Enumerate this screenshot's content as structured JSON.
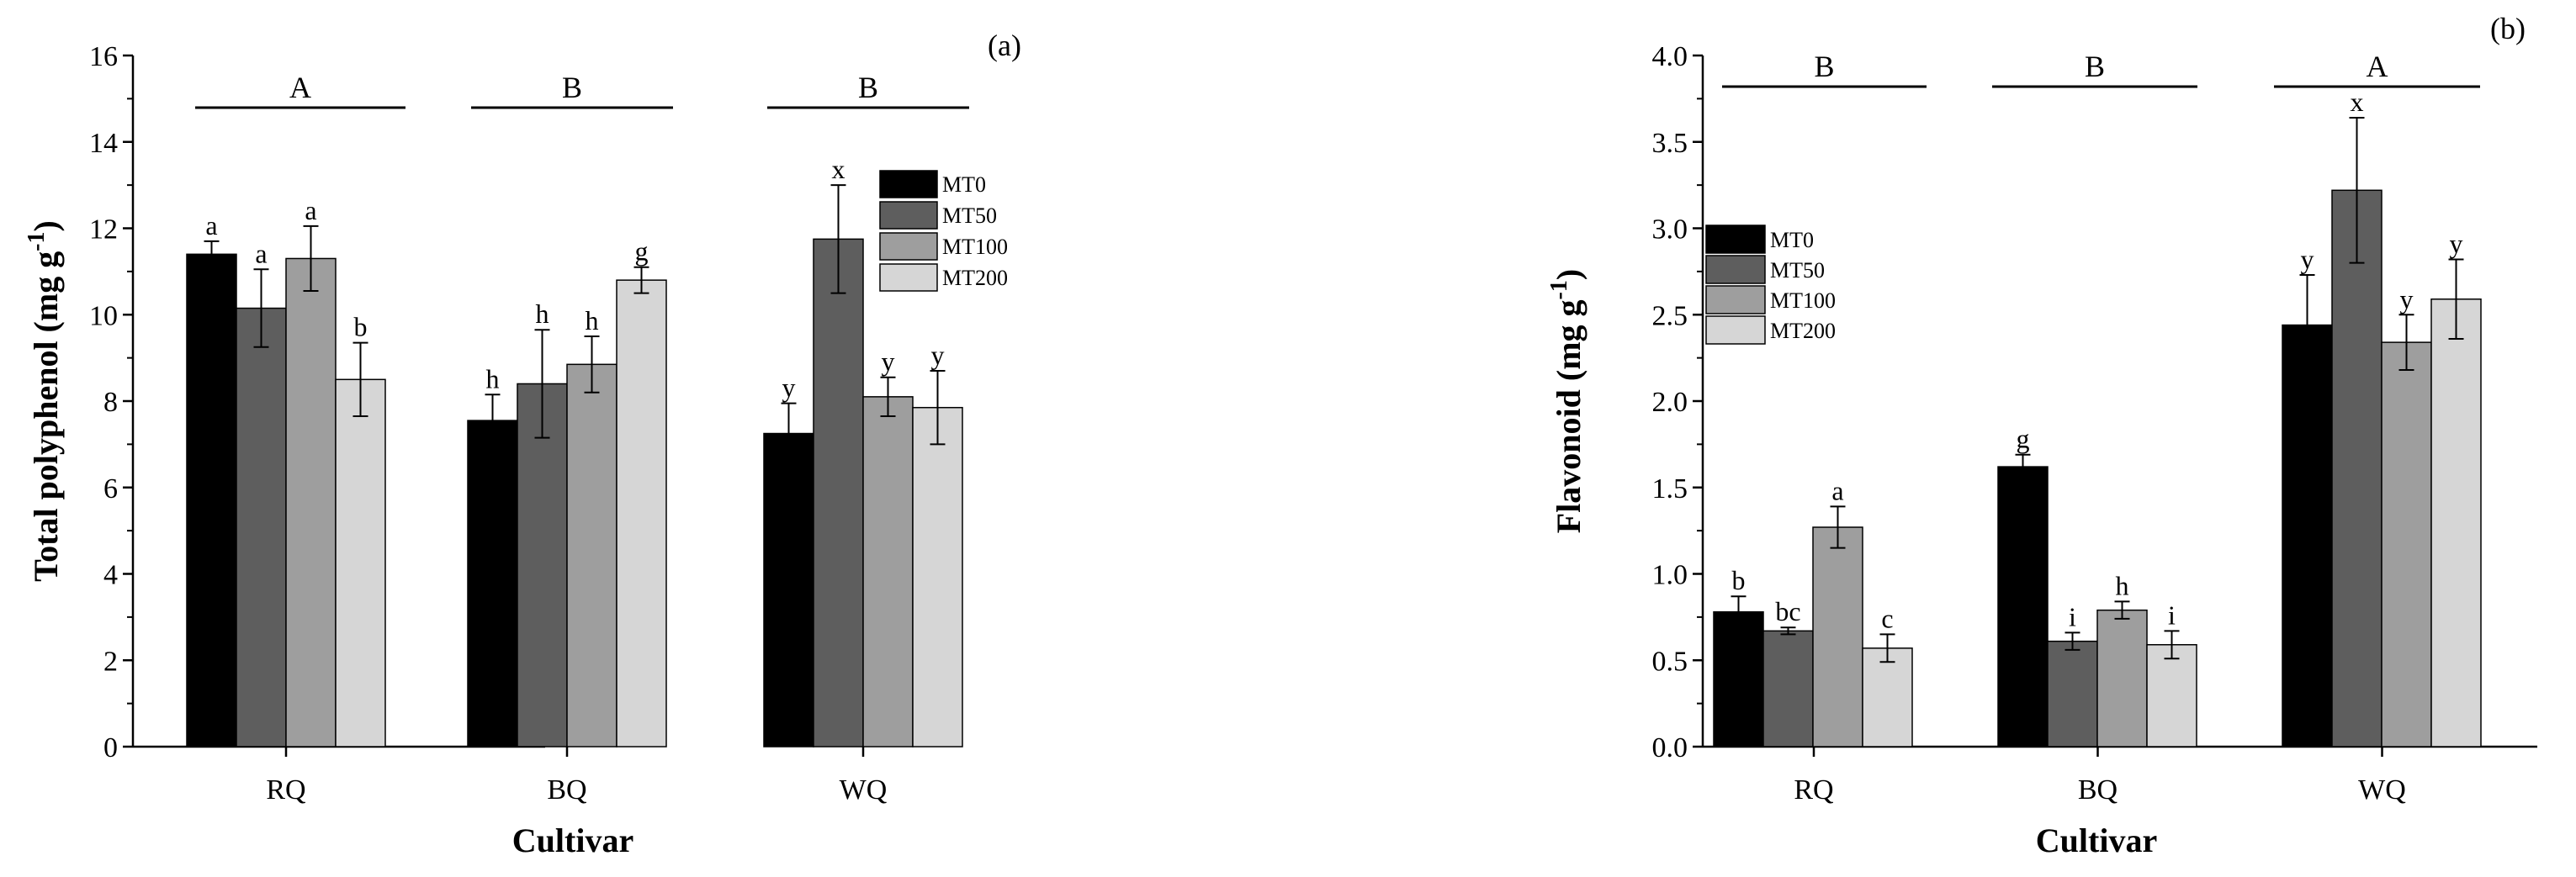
{
  "chart_data": [
    {
      "type": "bar",
      "panel_label": "(a)",
      "xlabel": "Cultivar",
      "ylabel": "Total polyphenol (mg g",
      "ylabel_sup": "-1",
      "ylabel_close": ")",
      "ylim": [
        0,
        16
      ],
      "yticks": [
        "0",
        "2",
        "4",
        "6",
        "8",
        "10",
        "12",
        "14",
        "16"
      ],
      "categories": [
        "RQ",
        "BQ",
        "WQ"
      ],
      "series": [
        {
          "name": "MT0",
          "values": [
            11.4,
            7.55,
            7.25
          ],
          "errors": [
            0.3,
            0.6,
            0.7
          ],
          "letters": [
            "a",
            "h",
            "y"
          ]
        },
        {
          "name": "MT50",
          "values": [
            10.15,
            8.4,
            11.75
          ],
          "errors": [
            0.9,
            1.25,
            1.25
          ],
          "letters": [
            "a",
            "h",
            "x"
          ]
        },
        {
          "name": "MT100",
          "values": [
            11.3,
            8.85,
            8.1
          ],
          "errors": [
            0.75,
            0.65,
            0.45
          ],
          "letters": [
            "a",
            "h",
            "y"
          ]
        },
        {
          "name": "MT200",
          "values": [
            8.5,
            10.8,
            7.85
          ],
          "errors": [
            0.85,
            0.3,
            0.85
          ],
          "letters": [
            "b",
            "g",
            "y"
          ]
        }
      ],
      "group_letters": [
        "A",
        "B",
        "B"
      ],
      "legend_position": "top-right"
    },
    {
      "type": "bar",
      "panel_label": "(b)",
      "xlabel": "Cultivar",
      "ylabel": "Flavonoid (mg g",
      "ylabel_sup": "-1",
      "ylabel_close": ")",
      "ylim": [
        0,
        4
      ],
      "yticks": [
        "0.0",
        "0.5",
        "1.0",
        "1.5",
        "2.0",
        "2.5",
        "3.0",
        "3.5",
        "4.0"
      ],
      "categories": [
        "RQ",
        "BQ",
        "WQ"
      ],
      "series": [
        {
          "name": "MT0",
          "values": [
            0.78,
            1.62,
            2.44
          ],
          "errors": [
            0.09,
            0.07,
            0.29
          ],
          "letters": [
            "b",
            "g",
            "y"
          ]
        },
        {
          "name": "MT50",
          "values": [
            0.67,
            0.61,
            3.22
          ],
          "errors": [
            0.02,
            0.05,
            0.42
          ],
          "letters": [
            "bc",
            "i",
            "x"
          ]
        },
        {
          "name": "MT100",
          "values": [
            1.27,
            0.79,
            2.34
          ],
          "errors": [
            0.12,
            0.05,
            0.16
          ],
          "letters": [
            "a",
            "h",
            "y"
          ]
        },
        {
          "name": "MT200",
          "values": [
            0.57,
            0.59,
            2.59
          ],
          "errors": [
            0.08,
            0.08,
            0.23
          ],
          "letters": [
            "c",
            "i",
            "y"
          ]
        }
      ],
      "group_letters": [
        "B",
        "B",
        "A"
      ],
      "legend_position": "top-left"
    }
  ],
  "colors": {
    "MT0": "#000000",
    "MT50": "#5e5e5e",
    "MT100": "#9e9e9e",
    "MT200": "#d6d6d6"
  }
}
